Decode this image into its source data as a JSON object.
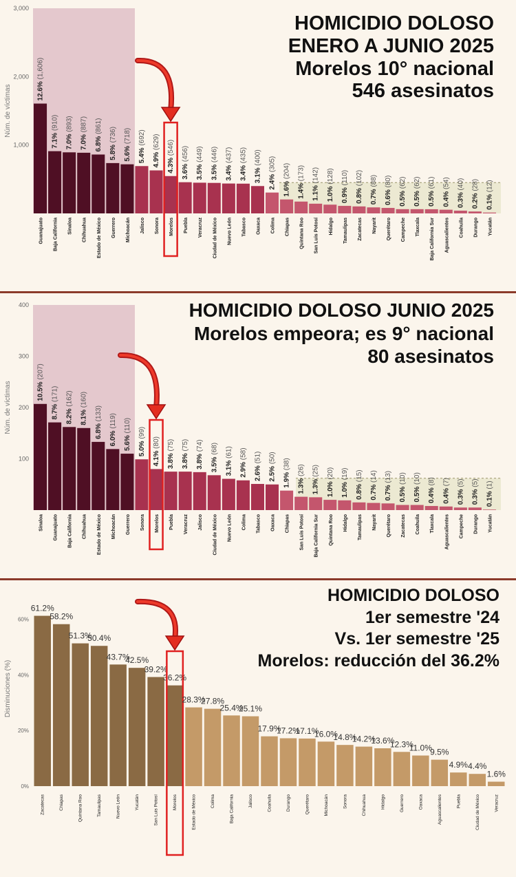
{
  "charts": [
    {
      "headline": [
        "HOMICIDIO DOLOSO",
        "ENERO A JUNIO 2025",
        "Morelos 10° nacional",
        "546 asesinatos"
      ],
      "chart_data": {
        "type": "bar",
        "ylabel": "Núm. de víctimas",
        "ylim": [
          0,
          3000
        ],
        "yticks": [
          {
            "value": 1000,
            "label": "1,000"
          },
          {
            "value": 2000,
            "label": "2,000"
          },
          {
            "value": 3000,
            "label": "3,000"
          }
        ],
        "categories": [
          "Guanajuato",
          "Baja California",
          "Sinaloa",
          "Chihuahua",
          "Estado de México",
          "Guerrero",
          "Michoacán",
          "Jalisco",
          "Sonora",
          "Morelos",
          "Puebla",
          "Veracruz",
          "Ciudad de México",
          "Nuevo León",
          "Tabasco",
          "Oaxaca",
          "Colima",
          "Chiapas",
          "Quintana Roo",
          "San Luis Potosí",
          "Hidalgo",
          "Tamaulipas",
          "Zacatecas",
          "Nayarit",
          "Querétaro",
          "Campeche",
          "Tlaxcala",
          "Baja California Sur",
          "Aguascalientes",
          "Coahuila",
          "Durango",
          "Yucatán"
        ],
        "values": [
          1606,
          910,
          893,
          887,
          861,
          736,
          718,
          692,
          629,
          546,
          456,
          449,
          446,
          437,
          435,
          400,
          305,
          204,
          173,
          142,
          128,
          110,
          102,
          88,
          80,
          62,
          62,
          61,
          54,
          40,
          28,
          12
        ],
        "pct_labels": [
          "12.6%",
          "7.1%",
          "7.0%",
          "7.0%",
          "6.8%",
          "5.8%",
          "5.6%",
          "5.4%",
          "4.9%",
          "4.3%",
          "3.6%",
          "3.5%",
          "3.5%",
          "3.4%",
          "3.4%",
          "3.1%",
          "2.4%",
          "1.6%",
          "1.4%",
          "1.1%",
          "1.0%",
          "0.9%",
          "0.8%",
          "0.7%",
          "0.6%",
          "0.5%",
          "0.5%",
          "0.5%",
          "0.4%",
          "0.3%",
          "0.2%",
          "0.1%"
        ],
        "count_labels": [
          "(1,606)",
          "(910)",
          "(893)",
          "(887)",
          "(861)",
          "(736)",
          "(718)",
          "(692)",
          "(629)",
          "(546)",
          "(456)",
          "(449)",
          "(446)",
          "(437)",
          "(435)",
          "(400)",
          "(305)",
          "(204)",
          "(173)",
          "(142)",
          "(128)",
          "(110)",
          "(102)",
          "(88)",
          "(80)",
          "(62)",
          "(62)",
          "(61)",
          "(54)",
          "(40)",
          "(28)",
          "(12)"
        ],
        "colors": {
          "top": "#4f0f24",
          "mid": "#a8324f",
          "low": "#c4566d",
          "highlight_box": "#e02020",
          "pink_band": "#e4c8cd",
          "olive_band": "#ece9d2"
        },
        "highlight": "Morelos"
      }
    },
    {
      "headline": [
        "HOMICIDIO DOLOSO JUNIO 2025",
        "Morelos empeora; es 9° nacional",
        "80 asesinatos"
      ],
      "chart_data": {
        "type": "bar",
        "ylabel": "Núm. de víctimas",
        "ylim": [
          0,
          400
        ],
        "yticks": [
          {
            "value": 100,
            "label": "100"
          },
          {
            "value": 200,
            "label": "200"
          },
          {
            "value": 300,
            "label": "300"
          },
          {
            "value": 400,
            "label": "400"
          }
        ],
        "categories": [
          "Sinaloa",
          "Guanajuato",
          "Baja California",
          "Chihuahua",
          "Estado de México",
          "Michoacán",
          "Guerrero",
          "Sonora",
          "Morelos",
          "Puebla",
          "Veracruz",
          "Jalisco",
          "Ciudad de México",
          "Nuevo León",
          "Colima",
          "Tabasco",
          "Oaxaca",
          "Chiapas",
          "San Luis Potosí",
          "Baja California Sur",
          "Quintana Roo",
          "Hidalgo",
          "Tamaulipas",
          "Nayarit",
          "Querétaro",
          "Zacatecas",
          "Coahuila",
          "Tlaxcala",
          "Aguascalientes",
          "Campeche",
          "Durango",
          "Yucatán"
        ],
        "values": [
          207,
          171,
          162,
          160,
          133,
          119,
          110,
          99,
          80,
          75,
          75,
          74,
          68,
          61,
          58,
          51,
          50,
          38,
          26,
          25,
          20,
          19,
          15,
          14,
          13,
          10,
          10,
          8,
          7,
          5,
          5,
          1
        ],
        "pct_labels": [
          "10.5%",
          "8.7%",
          "8.2%",
          "8.1%",
          "6.8%",
          "6.0%",
          "5.6%",
          "5.0%",
          "4.1%",
          "3.8%",
          "3.8%",
          "3.8%",
          "3.5%",
          "3.1%",
          "2.9%",
          "2.6%",
          "2.5%",
          "1.9%",
          "1.3%",
          "1.3%",
          "1.0%",
          "1.0%",
          "0.8%",
          "0.7%",
          "0.7%",
          "0.5%",
          "0.5%",
          "0.4%",
          "0.4%",
          "0.3%",
          "0.3%",
          "0.1%"
        ],
        "count_labels": [
          "(207)",
          "(171)",
          "(162)",
          "(160)",
          "(133)",
          "(119)",
          "(110)",
          "(99)",
          "(80)",
          "(75)",
          "(75)",
          "(74)",
          "(68)",
          "(61)",
          "(58)",
          "(51)",
          "(50)",
          "(38)",
          "(26)",
          "(25)",
          "(20)",
          "(19)",
          "(15)",
          "(14)",
          "(13)",
          "(10)",
          "(10)",
          "(8)",
          "(7)",
          "(5)",
          "(5)",
          "(1)"
        ],
        "colors": {
          "top": "#4f0f24",
          "mid": "#a8324f",
          "low": "#c4566d",
          "highlight_box": "#e02020",
          "pink_band": "#e4c8cd",
          "olive_band": "#ece9d2"
        },
        "highlight": "Morelos"
      }
    },
    {
      "headline": [
        "HOMICIDIO DOLOSO",
        "1er semestre '24",
        "Vs. 1er semestre '25",
        "Morelos: reducción del 36.2%"
      ],
      "chart_data": {
        "type": "bar",
        "ylabel": "Disminuciones (%)",
        "ylim": [
          0,
          70
        ],
        "yticks": [
          {
            "value": 0,
            "label": "0%"
          },
          {
            "value": 20,
            "label": "20%"
          },
          {
            "value": 40,
            "label": "40%"
          },
          {
            "value": 60,
            "label": "60%"
          }
        ],
        "categories": [
          "Zacatecas",
          "Chiapas",
          "Quintana Roo",
          "Tamaulipas",
          "Nuevo León",
          "Yucatán",
          "San Luis Potosí",
          "Morelos",
          "Estado de México",
          "Colima",
          "Baja California",
          "Jalisco",
          "Coahuila",
          "Durango",
          "Querétaro",
          "Michoacán",
          "Sonora",
          "Chihuahua",
          "Hidalgo",
          "Guerrero",
          "Oaxaca",
          "Aguascalientes",
          "Puebla",
          "Ciudad de México",
          "Veracruz"
        ],
        "values": [
          61.2,
          58.2,
          51.3,
          50.4,
          43.7,
          42.5,
          39.2,
          36.2,
          28.3,
          27.8,
          25.4,
          25.1,
          17.9,
          17.2,
          17.1,
          16.0,
          14.8,
          14.2,
          13.6,
          12.3,
          11.0,
          9.5,
          4.9,
          4.4,
          1.6
        ],
        "pct_labels": [
          "61.2%",
          "58.2%",
          "51.3%",
          "50.4%",
          "43.7%",
          "42.5%",
          "39.2%",
          "36.2%",
          "28.3%",
          "27.8%",
          "25.4%",
          "25.1%",
          "17.9%",
          "17.2%",
          "17.1%",
          "16.0%",
          "14.8%",
          "14.2%",
          "13.6%",
          "12.3%",
          "11.0%",
          "9.5%",
          "4.9%",
          "4.4%",
          "1.6%"
        ],
        "colors": {
          "dark": "#8a6a44",
          "light": "#c49a68",
          "highlight_box": "#e02020"
        },
        "highlight": "Morelos"
      }
    }
  ]
}
